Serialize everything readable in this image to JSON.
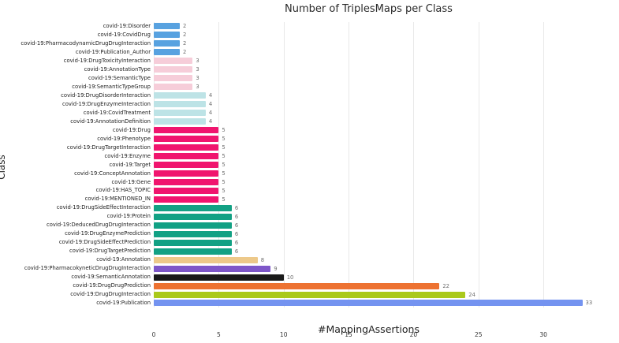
{
  "chart_data": {
    "type": "bar",
    "orientation": "horizontal",
    "title": "Number of TriplesMaps per Class",
    "xlabel": "#MappingAssertions",
    "ylabel": "Class",
    "xlim": [
      0,
      34
    ],
    "xticks": [
      0,
      5,
      10,
      15,
      20,
      25,
      30
    ],
    "grid": true,
    "legend": "none",
    "categories": [
      "covid-19:Disorder",
      "covid-19:CovidDrug",
      "covid-19:PharmacodynamicDrugDrugInteraction",
      "covid-19:Publication_Author",
      "covid-19:DrugToxicityInteraction",
      "covid-19:AnnotationType",
      "covid-19:SemanticType",
      "covid-19:SemanticTypeGroup",
      "covid-19:DrugDisorderInteraction",
      "covid-19:DrugEnzymeInteraction",
      "covid-19:CovidTreatment",
      "covid-19:AnnotationDefinition",
      "covid-19:Drug",
      "covid-19:Phenotype",
      "covid-19:DrugTargetInteraction",
      "covid-19:Enzyme",
      "covid-19:Target",
      "covid-19:ConceptAnnotation",
      "covid-19:Gene",
      "covid-19:HAS_TOPIC",
      "covid-19:MENTIONED_IN",
      "covid-19:DrugSideEffectInteraction",
      "covid-19:Protein",
      "covid-19:DeducedDrugDrugInteraction",
      "covid-19:DrugEnzymePrediction",
      "covid-19:DrugSideEffectPrediction",
      "covid-19:DrugTargetPrediction",
      "covid-19:Annotation",
      "covid-19:PharmacokyneticDrugDrugInteraction",
      "covid-19:SemanticAnnotation",
      "covid-19:DrugDrugPrediction",
      "covid-19:DrugDrugInteraction",
      "covid-19:Publication"
    ],
    "values": [
      2,
      2,
      2,
      2,
      3,
      3,
      3,
      3,
      4,
      4,
      4,
      4,
      5,
      5,
      5,
      5,
      5,
      5,
      5,
      5,
      5,
      6,
      6,
      6,
      6,
      6,
      6,
      8,
      9,
      10,
      22,
      24,
      33
    ],
    "colors": [
      "#58a2e0",
      "#58a2e0",
      "#58a2e0",
      "#58a2e0",
      "#f6cdd9",
      "#f6cdd9",
      "#f6cdd9",
      "#f6cdd9",
      "#bde3e6",
      "#bde3e6",
      "#bde3e6",
      "#bde3e6",
      "#f0156e",
      "#f0156e",
      "#f0156e",
      "#f0156e",
      "#f0156e",
      "#f0156e",
      "#f0156e",
      "#f0156e",
      "#f0156e",
      "#12a184",
      "#12a184",
      "#12a184",
      "#12a184",
      "#12a184",
      "#12a184",
      "#edc98a",
      "#7e57c9",
      "#1a1a1a",
      "#ed7231",
      "#aac91c",
      "#7493f0"
    ],
    "value_label_color": "#6e6e6e",
    "gridline_color": "#e8e8e8"
  }
}
